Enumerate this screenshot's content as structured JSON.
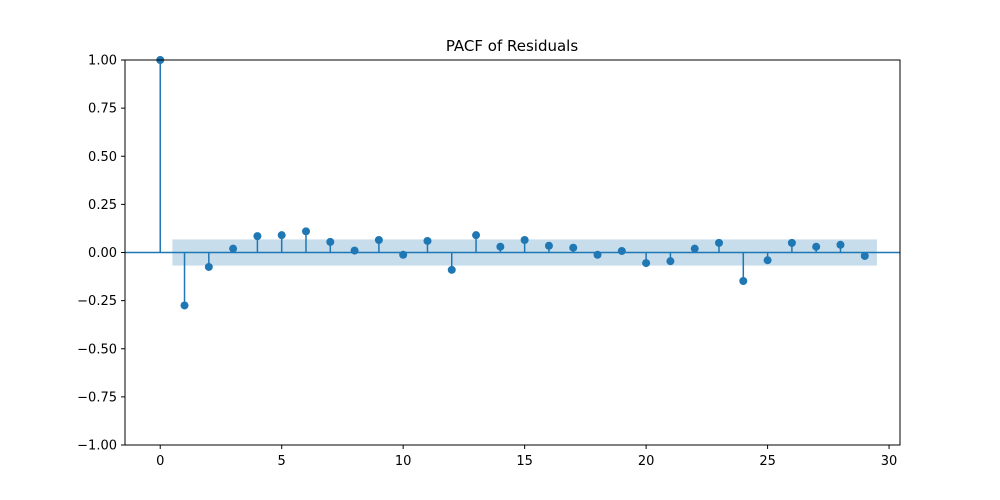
{
  "chart_data": {
    "type": "stem",
    "title": "PACF of Residuals",
    "xlabel": "",
    "ylabel": "",
    "xlim": [
      -1.45,
      30.45
    ],
    "ylim": [
      -1.0,
      1.0
    ],
    "xticks": [
      0,
      5,
      10,
      15,
      20,
      25,
      30
    ],
    "xtick_labels": [
      "0",
      "5",
      "10",
      "15",
      "20",
      "25",
      "30"
    ],
    "yticks": [
      1.0,
      0.75,
      0.5,
      0.25,
      0.0,
      -0.25,
      -0.5,
      -0.75,
      -1.0
    ],
    "ytick_labels": [
      "1.00",
      "0.75",
      "0.50",
      "0.25",
      "0.00",
      "−0.25",
      "−0.50",
      "−0.75",
      "−1.00"
    ],
    "grid": false,
    "colors": {
      "marker": "#1f77b4",
      "band": "#1f77b4"
    },
    "confidence_band": {
      "x_start": 0.5,
      "x_end": 29.5,
      "lower": -0.068,
      "upper": 0.068
    },
    "lags": [
      0,
      1,
      2,
      3,
      4,
      5,
      6,
      7,
      8,
      9,
      10,
      11,
      12,
      13,
      14,
      15,
      16,
      17,
      18,
      19,
      20,
      21,
      22,
      23,
      24,
      25,
      26,
      27,
      28,
      29
    ],
    "values": [
      1.0,
      -0.275,
      -0.075,
      0.02,
      0.085,
      0.09,
      0.11,
      0.055,
      0.01,
      0.065,
      -0.012,
      0.06,
      -0.09,
      0.09,
      0.03,
      0.065,
      0.035,
      0.025,
      -0.012,
      0.008,
      -0.055,
      -0.045,
      0.02,
      0.05,
      -0.148,
      -0.04,
      0.05,
      0.03,
      0.04,
      -0.018
    ]
  }
}
